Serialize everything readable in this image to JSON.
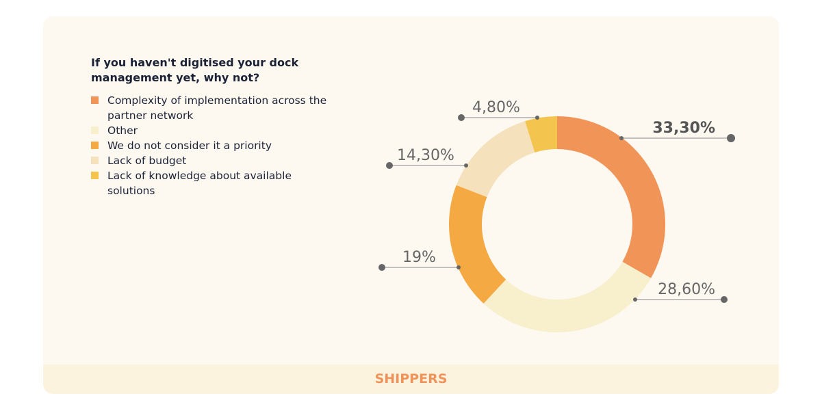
{
  "chart_data": {
    "type": "donut",
    "title": "If you haven't digitised your dock management yet, why not?",
    "categories": [
      "Complexity of implementation across the partner network",
      "Other",
      "We do not consider it a priority",
      "Lack of budget",
      "Lack of knowledge about available solutions"
    ],
    "values": [
      33.3,
      28.6,
      19,
      14.3,
      4.8
    ],
    "value_labels": [
      "33,30%",
      "28,60%",
      "19%",
      "14,30%",
      "4,80%"
    ],
    "colors": [
      "#f19458",
      "#f8efcc",
      "#f4a942",
      "#f5e1bb",
      "#f3c44e"
    ]
  },
  "footer": "SHIPPERS"
}
